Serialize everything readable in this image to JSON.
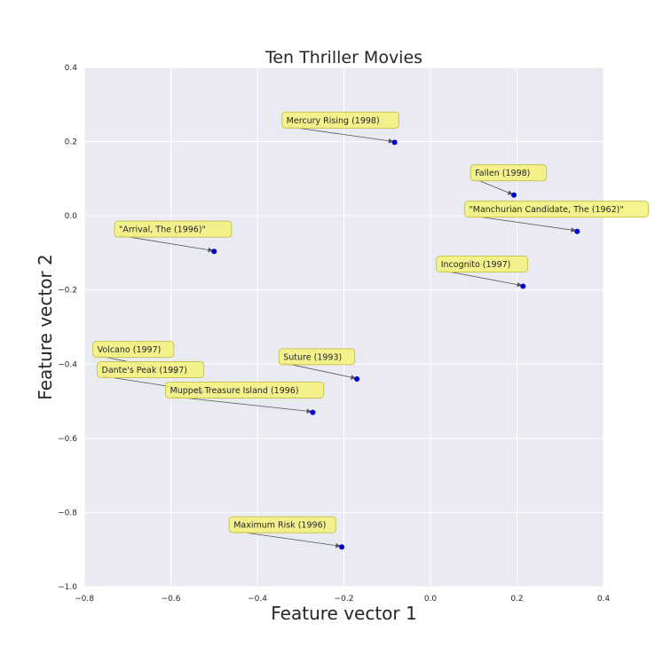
{
  "chart_data": {
    "type": "scatter",
    "title": "Ten Thriller Movies",
    "xlabel": "Feature vector 1",
    "ylabel": "Feature vector 2",
    "xlim": [
      -0.8,
      0.4
    ],
    "ylim": [
      -1.0,
      0.4
    ],
    "xticks": [
      "−0.8",
      "−0.6",
      "−0.4",
      "−0.2",
      "0.0",
      "0.2",
      "0.4"
    ],
    "yticks": [
      "−1.0",
      "−0.8",
      "−0.6",
      "−0.4",
      "−0.2",
      "0.0",
      "0.2",
      "0.4"
    ],
    "grid": true,
    "point_color": "#0000cc",
    "annotation_color": "#f4f27a",
    "background_color": "#eaeaf2",
    "points": [
      {
        "label": "Mercury Rising (1998)",
        "x": -0.083,
        "y": 0.198,
        "label_dx": -0.25,
        "label_dy": 0.06
      },
      {
        "label": "Fallen (1998)",
        "x": 0.193,
        "y": 0.056,
        "label_dx": -0.09,
        "label_dy": 0.06
      },
      {
        "label": "\"Manchurian Candidate, The (1962)\"",
        "x": 0.339,
        "y": -0.042,
        "label_dx": -0.25,
        "label_dy": 0.06
      },
      {
        "label": "\"Arrival, The (1996)\"",
        "x": -0.5,
        "y": -0.096,
        "label_dx": -0.22,
        "label_dy": 0.06
      },
      {
        "label": "Incognito (1997)",
        "x": 0.214,
        "y": -0.19,
        "label_dx": -0.19,
        "label_dy": 0.06
      },
      {
        "label": "Volcano (1997)",
        "x": -0.59,
        "y": -0.42,
        "label_dx": -0.18,
        "label_dy": 0.06
      },
      {
        "label": "Dante's Peak (1997)",
        "x": -0.53,
        "y": -0.475,
        "label_dx": -0.23,
        "label_dy": 0.06
      },
      {
        "label": "Suture (1993)",
        "x": -0.17,
        "y": -0.44,
        "label_dx": -0.17,
        "label_dy": 0.06
      },
      {
        "label": "Muppet Treasure Island (1996)",
        "x": -0.272,
        "y": -0.53,
        "label_dx": -0.33,
        "label_dy": 0.06
      },
      {
        "label": "Maximum Risk (1996)",
        "x": -0.205,
        "y": -0.893,
        "label_dx": -0.25,
        "label_dy": 0.06
      }
    ]
  }
}
